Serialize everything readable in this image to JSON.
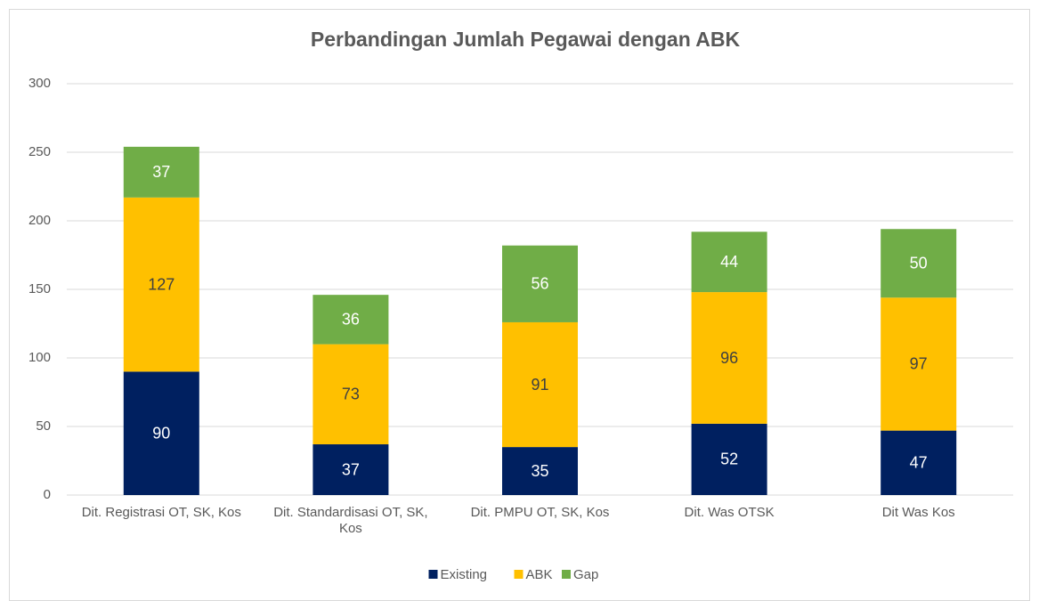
{
  "chart_data": {
    "type": "stacked_bar",
    "title": "Perbandingan Jumlah Pegawai dengan ABK",
    "categories": [
      "Dit. Registrasi OT, SK, Kos",
      "Dit. Standardisasi OT, SK, Kos",
      "Dit. PMPU OT, SK, Kos",
      "Dit. Was OTSK",
      "Dit Was Kos"
    ],
    "series": [
      {
        "name": "Existing",
        "color": "#002060",
        "values": [
          90,
          37,
          35,
          52,
          47
        ]
      },
      {
        "name": "ABK",
        "color": "#ffc000",
        "values": [
          127,
          73,
          91,
          96,
          97
        ]
      },
      {
        "name": "Gap",
        "color": "#70ad47",
        "values": [
          37,
          36,
          56,
          44,
          50
        ]
      }
    ],
    "ylim": [
      0,
      300
    ],
    "yticks": [
      0,
      50,
      100,
      150,
      200,
      250,
      300
    ],
    "grid": true,
    "legend": "bottom"
  }
}
